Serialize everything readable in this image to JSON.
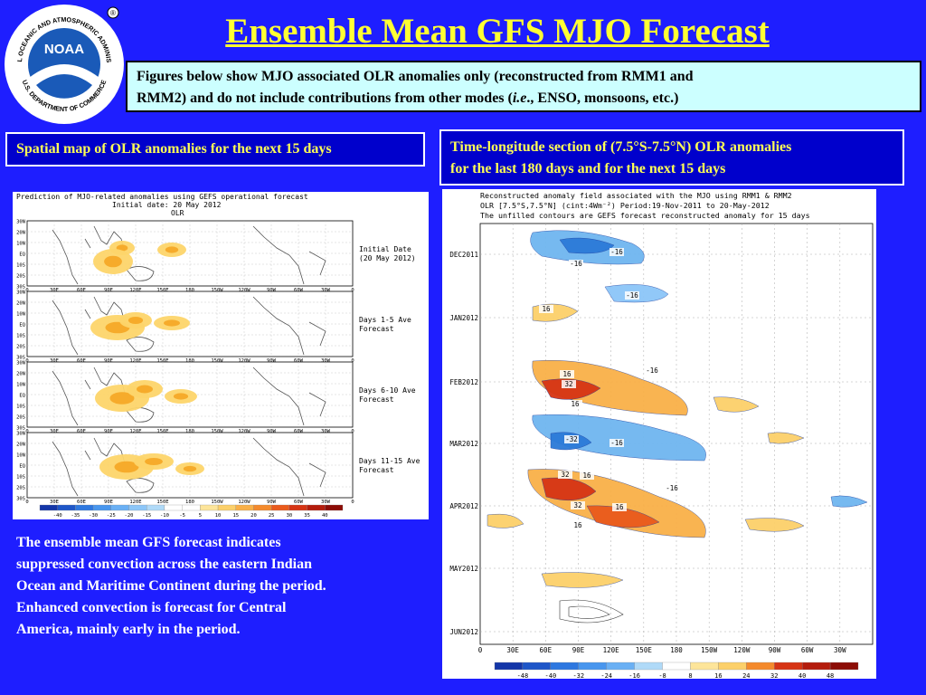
{
  "slide": {
    "title": "Ensemble Mean GFS MJO Forecast",
    "intro": {
      "line1": "Figures below show MJO associated OLR anomalies only (reconstructed from RMM1 and",
      "line2_pre": "RMM2) and do not include contributions from other modes (",
      "line2_italic": "i.e",
      "line2_post": "., ENSO, monsoons, etc.)"
    },
    "left_caption": "Spatial map of OLR anomalies for the next 15 days",
    "right_caption": {
      "line1": "Time-longitude section of (7.5°S-7.5°N) OLR anomalies",
      "line2": "for the last 180 days and for the next 15 days"
    },
    "summary": {
      "line1": "The ensemble mean GFS forecast indicates",
      "line2": "suppressed convection across the eastern Indian",
      "line3": "Ocean and Maritime Continent during the period.",
      "line4": "Enhanced convection is forecast for Central",
      "line5": "America, mainly early in the period."
    }
  },
  "logo": {
    "center_text": "NOAA",
    "ring_top": "NATIONAL OCEANIC AND ATMOSPHERIC ADMINISTRATION",
    "ring_bottom": "U.S. DEPARTMENT OF COMMERCE"
  },
  "spatial_map": {
    "header1": "Prediction of MJO-related anomalies using GEFS operational forecast",
    "header2": "Initial date: 20 May 2012",
    "header3": "OLR",
    "lat_labels": [
      "30N",
      "20N",
      "10N",
      "EQ",
      "10S",
      "20S",
      "30S"
    ],
    "lon_labels": [
      "0",
      "30E",
      "60E",
      "90E",
      "120E",
      "150E",
      "180",
      "150W",
      "120W",
      "90W",
      "60W",
      "30W",
      "0"
    ],
    "panels": [
      {
        "label1": "Initial Date",
        "label2": "(20 May 2012)"
      },
      {
        "label1": "Days 1-5 Ave",
        "label2": "Forecast"
      },
      {
        "label1": "Days 6-10 Ave",
        "label2": "Forecast"
      },
      {
        "label1": "Days 11-15 Ave",
        "label2": "Forecast"
      }
    ],
    "colorbar_labels": [
      "-40",
      "-35",
      "-30",
      "-25",
      "-20",
      "-15",
      "-10",
      "-5",
      "5",
      "10",
      "15",
      "20",
      "25",
      "30",
      "35",
      "40"
    ]
  },
  "hovmoller": {
    "header1": "Reconstructed anomaly field associated with the MJO using RMM1 & RMM2",
    "header2": "OLR [7.5°S,7.5°N] (cint:4Wm⁻²) Period:19-Nov-2011 to 20-May-2012",
    "header3": "The unfilled contours are GEFS forecast reconstructed anomaly for 15 days",
    "time_labels": [
      "DEC2011",
      "JAN2012",
      "FEB2012",
      "MAR2012",
      "APR2012",
      "MAY2012",
      "JUN2012"
    ],
    "lon_labels": [
      "0",
      "30E",
      "60E",
      "90E",
      "120E",
      "150E",
      "180",
      "150W",
      "120W",
      "90W",
      "60W",
      "30W"
    ],
    "contour_labels": [
      "-16",
      "-16",
      "-16",
      "16",
      "-16",
      "16",
      "32",
      "16",
      "-32",
      "-16",
      "32",
      "16",
      "-16",
      "32",
      "16",
      "16"
    ],
    "colorbar_labels": [
      "-48",
      "-40",
      "-32",
      "-24",
      "-16",
      "-8",
      "8",
      "16",
      "24",
      "32",
      "40",
      "48"
    ]
  },
  "colors": {
    "background": "#1e1eff",
    "title": "#ffff33",
    "caption_text": "#ffff55",
    "intro_box": "#ccffff"
  }
}
